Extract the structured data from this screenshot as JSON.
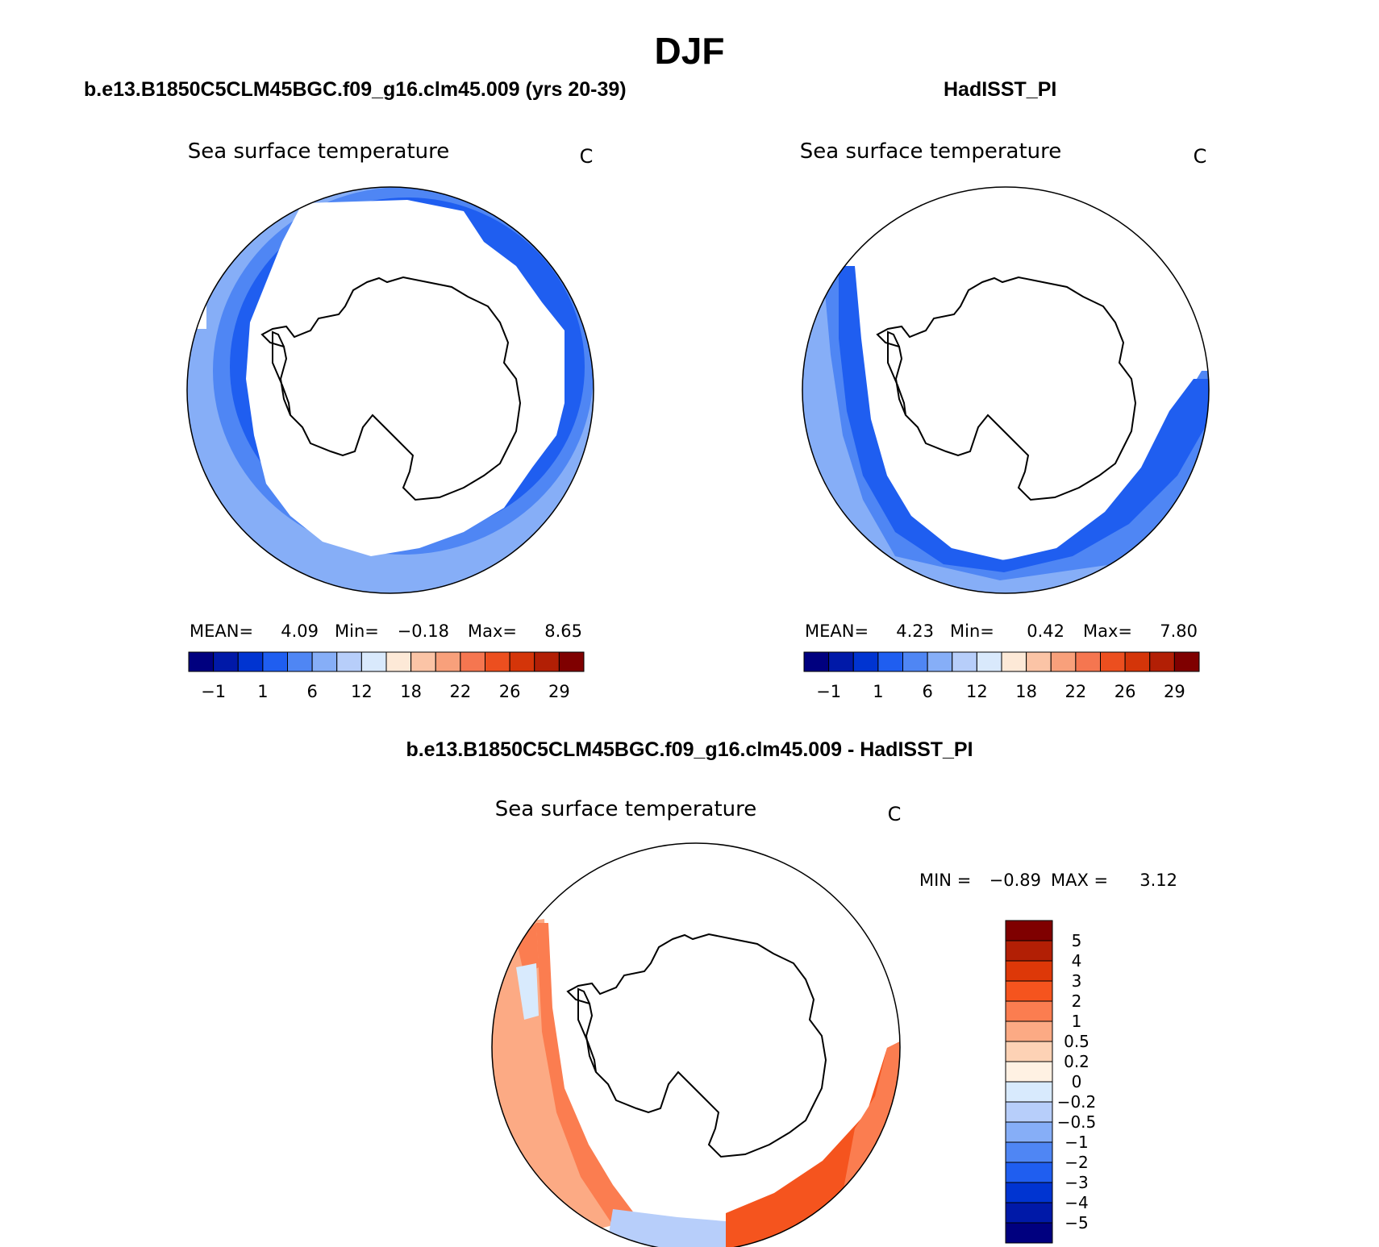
{
  "title": "DJF",
  "colors": {
    "abs_scale": [
      "#00007f",
      "#0019a8",
      "#0034d1",
      "#1f5ef0",
      "#4f86f4",
      "#86aef7",
      "#b7cefa",
      "#d9e9fc",
      "#fde9d7",
      "#fbc4a6",
      "#f8a07b",
      "#f57650",
      "#ec4f1f",
      "#d43509",
      "#b21f05",
      "#7f0000"
    ],
    "diff_scale": [
      "#7f0000",
      "#b21f05",
      "#dd3808",
      "#f5541e",
      "#fb7d50",
      "#fcaa84",
      "#fdd2b5",
      "#fff1e3",
      "#d8eafd",
      "#b7cefa",
      "#86aef7",
      "#4f86f4",
      "#1f5ef0",
      "#0034d1",
      "#0019a8",
      "#00007f"
    ]
  },
  "panels": [
    {
      "title": "b.e13.B1850C5CLM45BGC.f09_g16.clm45.009 (yrs 20-39)",
      "subtitle": "Sea surface temperature",
      "units": "C",
      "stats": {
        "mean_label": "MEAN=",
        "mean": "4.09",
        "min_label": "Min=",
        "min": "−0.18",
        "max_label": "Max=",
        "max": "8.65"
      },
      "colorbar_ticks": [
        "−1",
        "1",
        "6",
        "12",
        "18",
        "22",
        "26",
        "29"
      ]
    },
    {
      "title": "HadISST_PI",
      "subtitle": "Sea surface temperature",
      "units": "C",
      "stats": {
        "mean_label": "MEAN=",
        "mean": "4.23",
        "min_label": "Min=",
        "min": "0.42",
        "max_label": "Max=",
        "max": "7.80"
      },
      "colorbar_ticks": [
        "−1",
        "1",
        "6",
        "12",
        "18",
        "22",
        "26",
        "29"
      ]
    },
    {
      "title": "b.e13.B1850C5CLM45BGC.f09_g16.clm45.009 - HadISST_PI",
      "subtitle": "Sea surface temperature",
      "units": "C",
      "stats": {
        "min_label": "MIN =",
        "min": "−0.89",
        "max_label": "MAX =",
        "max": "3.12"
      },
      "colorbar_ticks": [
        "5",
        "4",
        "3",
        "2",
        "1",
        "0.5",
        "0.2",
        "0",
        "−0.2",
        "−0.5",
        "−1",
        "−2",
        "−3",
        "−4",
        "−5"
      ]
    }
  ]
}
